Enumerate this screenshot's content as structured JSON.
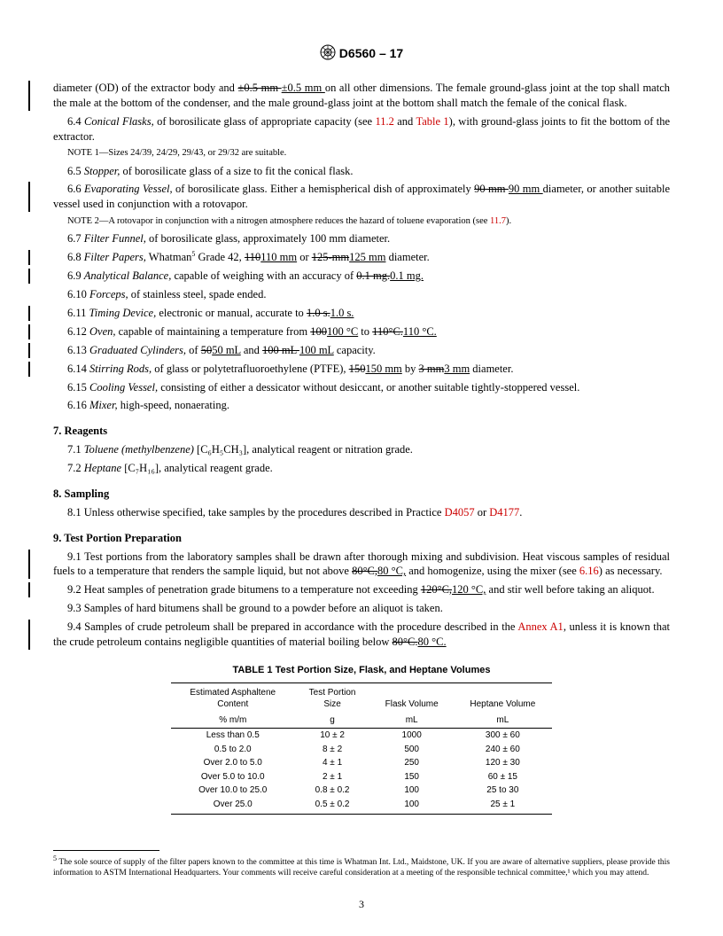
{
  "header": {
    "designation": "D6560 – 17"
  },
  "body": {
    "p1": "diameter (OD) of the extractor body and ",
    "p1_strike": "±0.5 mm ",
    "p1_under": "±0.5 mm ",
    "p1_cont": "on all other dimensions. The female ground-glass joint at the top shall match the male at the bottom of the condenser, and the male ground-glass joint at the bottom shall match the female of the conical flask.",
    "p6_4_a": "6.4 ",
    "p6_4_i": "Conical Flasks,",
    "p6_4_b": " of borosilicate glass of appropriate capacity (see ",
    "p6_4_l1": "11.2",
    "p6_4_c": " and ",
    "p6_4_l2": "Table 1",
    "p6_4_d": "), with ground-glass joints to fit the bottom of the extractor.",
    "note1": "NOTE 1—Sizes 24/39, 24/29, 29/43, or 29/32 are suitable.",
    "p6_5_a": "6.5 ",
    "p6_5_i": "Stopper,",
    "p6_5_b": " of borosilicate glass of a size to fit the conical flask.",
    "p6_6_a": "6.6 ",
    "p6_6_i": "Evaporating Vessel,",
    "p6_6_b": " of borosilicate glass. Either a hemispherical dish of approximately ",
    "p6_6_s": "90 mm ",
    "p6_6_u": "90 mm ",
    "p6_6_c": "diameter, or another suitable vessel used in conjunction with a rotovapor.",
    "note2_a": "NOTE 2—A rotovapor in conjunction with a nitrogen atmosphere reduces the hazard of toluene evaporation (see ",
    "note2_l": "11.7",
    "note2_b": ").",
    "p6_7_a": "6.7 ",
    "p6_7_i": "Filter Funnel,",
    "p6_7_b": " of borosilicate glass, approximately 100 mm diameter.",
    "p6_8_a": "6.8 ",
    "p6_8_i": "Filter Papers,",
    "p6_8_b": " Whatman",
    "p6_8_sup": "5",
    "p6_8_c": " Grade 42, ",
    "p6_8_s1": "110",
    "p6_8_u1": "110 mm",
    "p6_8_d": " or ",
    "p6_8_s2": "125-mm",
    "p6_8_u2": "125 mm",
    "p6_8_e": " diameter.",
    "p6_9_a": "6.9 ",
    "p6_9_i": "Analytical Balance,",
    "p6_9_b": " capable of weighing with an accuracy of ",
    "p6_9_s": "0.1 mg.",
    "p6_9_u": "0.1 mg.",
    "p6_10_a": "6.10 ",
    "p6_10_i": "Forceps,",
    "p6_10_b": " of stainless steel, spade ended.",
    "p6_11_a": "6.11 ",
    "p6_11_i": "Timing Device,",
    "p6_11_b": " electronic or manual, accurate to ",
    "p6_11_s": "1.0 s.",
    "p6_11_u": "1.0 s.",
    "p6_12_a": "6.12 ",
    "p6_12_i": "Oven,",
    "p6_12_b": " capable of maintaining a temperature from ",
    "p6_12_s1": "100",
    "p6_12_u1": "100 °C",
    "p6_12_c": " to ",
    "p6_12_s2": "110°C.",
    "p6_12_u2": "110 °C.",
    "p6_13_a": "6.13 ",
    "p6_13_i": "Graduated Cylinders,",
    "p6_13_b": " of ",
    "p6_13_s1": "50",
    "p6_13_u1": "50 mL",
    "p6_13_c": " and ",
    "p6_13_s2": "100 mL ",
    "p6_13_u2": "100 mL",
    "p6_13_d": " capacity.",
    "p6_14_a": "6.14 ",
    "p6_14_i": "Stirring Rods,",
    "p6_14_b": " of glass or polytetrafluoroethylene (PTFE), ",
    "p6_14_s1": "150",
    "p6_14_u1": "150 mm",
    "p6_14_c": " by ",
    "p6_14_s2": "3 mm",
    "p6_14_u2": "3 mm",
    "p6_14_d": " diameter.",
    "p6_15_a": "6.15 ",
    "p6_15_i": "Cooling Vessel,",
    "p6_15_b": " consisting of either a dessicator without desiccant, or another suitable tightly-stoppered vessel.",
    "p6_16_a": "6.16 ",
    "p6_16_i": "Mixer,",
    "p6_16_b": " high-speed, nonaerating.",
    "s7": "7. Reagents",
    "p7_1_a": "7.1 ",
    "p7_1_i": "Toluene (methylbenzene)",
    "p7_1_b": " [C₆H₅CH₃], analytical reagent or nitration grade.",
    "p7_2_a": "7.2 ",
    "p7_2_i": "Heptane",
    "p7_2_b": " [C₇H₁₆], analytical reagent grade.",
    "s8": "8. Sampling",
    "p8_1_a": "8.1 Unless otherwise specified, take samples by the procedures described in Practice ",
    "p8_1_l1": "D4057",
    "p8_1_b": " or ",
    "p8_1_l2": "D4177",
    "p8_1_c": ".",
    "s9": "9. Test Portion Preparation",
    "p9_1_a": "9.1 Test portions from the laboratory samples shall be drawn after thorough mixing and subdivision. Heat viscous samples of residual fuels to a temperature that renders the sample liquid, but not above ",
    "p9_1_s": "80°C,",
    "p9_1_u": "80 °C,",
    "p9_1_b": " and homogenize, using the mixer (see ",
    "p9_1_l": "6.16",
    "p9_1_c": ") as necessary.",
    "p9_2_a": "9.2 Heat samples of penetration grade bitumens to a temperature not exceeding ",
    "p9_2_s": "120°C,",
    "p9_2_u": "120 °C,",
    "p9_2_b": " and stir well before taking an aliquot.",
    "p9_3": "9.3 Samples of hard bitumens shall be ground to a powder before an aliquot is taken.",
    "p9_4_a": "9.4 Samples of crude petroleum shall be prepared in accordance with the procedure described in the ",
    "p9_4_l": "Annex A1",
    "p9_4_b": ", unless it is known that the crude petroleum contains negligible quantities of material boiling below ",
    "p9_4_s": "80°C.",
    "p9_4_u": "80 °C."
  },
  "table": {
    "title": "TABLE 1 Test Portion Size, Flask, and Heptane Volumes",
    "head": {
      "c1a": "Estimated Asphaltene",
      "c1b": "Content",
      "c1c": "% m/m",
      "c2a": "Test Portion",
      "c2b": "Size",
      "c2c": "g",
      "c3a": "Flask Volume",
      "c3b": "mL",
      "c4a": "Heptane Volume",
      "c4b": "mL"
    },
    "rows": [
      {
        "c1": "Less than 0.5",
        "c2": "10 ± 2",
        "c3": "1000",
        "c4": "300 ± 60"
      },
      {
        "c1": "0.5 to 2.0",
        "c2": "8 ± 2",
        "c3": "500",
        "c4": "240 ± 60"
      },
      {
        "c1": "Over 2.0 to 5.0",
        "c2": "4 ± 1",
        "c3": "250",
        "c4": "120 ± 30"
      },
      {
        "c1": "Over 5.0 to 10.0",
        "c2": "2 ± 1",
        "c3": "150",
        "c4": "60 ± 15"
      },
      {
        "c1": "Over 10.0 to 25.0",
        "c2": "0.8 ± 0.2",
        "c3": "100",
        "c4": "25 to 30"
      },
      {
        "c1": "Over 25.0",
        "c2": "0.5 ± 0.2",
        "c3": "100",
        "c4": "25 ± 1"
      }
    ]
  },
  "footnote": {
    "sup": "5",
    "text": " The sole source of supply of the filter papers known to the committee at this time is Whatman Int. Ltd., Maidstone, UK. If you are aware of alternative suppliers, please provide this information to ASTM International Headquarters. Your comments will receive careful consideration at a meeting of the responsible technical committee,¹ which you may attend."
  },
  "pagenum": "3"
}
